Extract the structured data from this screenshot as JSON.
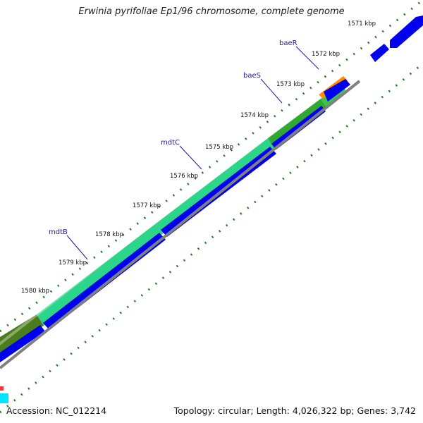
{
  "map": {
    "title": "Erwinia pyrifoliae Ep1/96 chromosome, complete genome",
    "accession": "Accession: NC_012214",
    "summary": "Topology: circular; Length: 4,026,322 bp; Genes: 3,742"
  },
  "ticks": [
    "1571 kbp",
    "1572 kbp",
    "1573 kbp",
    "1574 kbp",
    "1575 kbp",
    "1576 kbp",
    "1577 kbp",
    "1578 kbp",
    "1579 kbp",
    "1580 kbp"
  ],
  "genes": [
    "baeR",
    "baeS",
    "mdtC",
    "mdtB"
  ],
  "colors": {
    "cds": "#0000ee",
    "ring_green": "#2bd68a",
    "ring_olive": "#4a7d1c",
    "ring_dark_green": "#2fa834",
    "ring_orange": "#ff8c00",
    "backbone": "#808080",
    "dots": "#1e7a1e"
  }
}
